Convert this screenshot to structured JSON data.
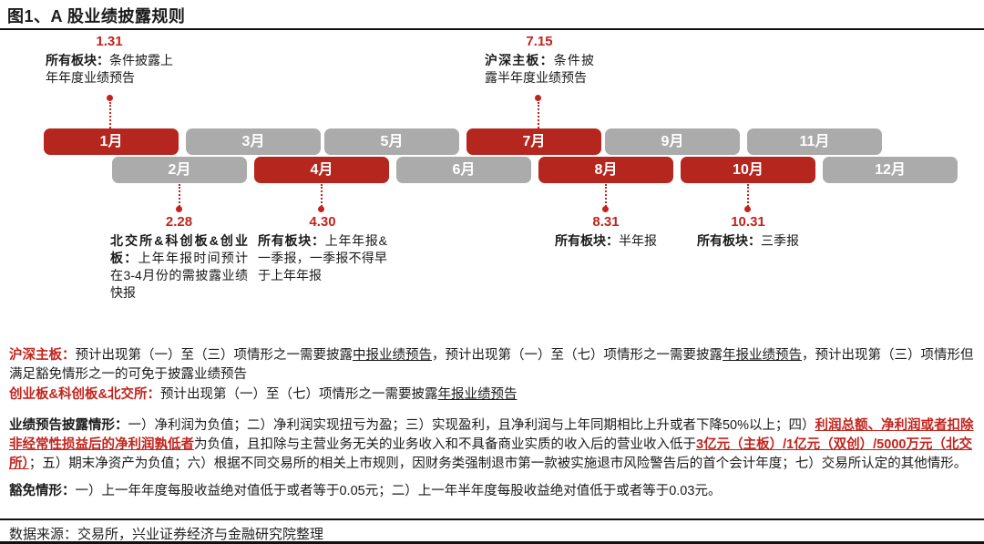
{
  "figure": {
    "title": "图1、A 股业绩披露规则"
  },
  "colors": {
    "highlight_red": "#B5261F",
    "accent_red_text": "#C2241D",
    "month_gray": "#ABABAB",
    "text": "#1A1A1A"
  },
  "timeline": {
    "months": [
      {
        "label": "1月",
        "highlighted": true
      },
      {
        "label": "2月",
        "highlighted": false
      },
      {
        "label": "3月",
        "highlighted": false
      },
      {
        "label": "4月",
        "highlighted": true
      },
      {
        "label": "5月",
        "highlighted": false
      },
      {
        "label": "6月",
        "highlighted": false
      },
      {
        "label": "7月",
        "highlighted": true
      },
      {
        "label": "8月",
        "highlighted": true
      },
      {
        "label": "9月",
        "highlighted": false
      },
      {
        "label": "10月",
        "highlighted": true
      },
      {
        "label": "11月",
        "highlighted": false
      },
      {
        "label": "12月",
        "highlighted": false
      }
    ]
  },
  "annotations": {
    "jan": {
      "date": "1.31",
      "segments": [
        {
          "t": "所有板块：",
          "s": "b"
        },
        {
          "t": "条件披露上年年度业绩预告",
          "s": ""
        }
      ]
    },
    "jul": {
      "date": "7.15",
      "segments": [
        {
          "t": "沪深主板：",
          "s": "b"
        },
        {
          "t": "条件披露半年度业绩预告",
          "s": ""
        }
      ]
    },
    "feb": {
      "date": "2.28",
      "segments": [
        {
          "t": "北交所&科创板&创业板：",
          "s": "b"
        },
        {
          "t": "上年年报时间预计在3-4月份的需披露业绩快报",
          "s": ""
        }
      ]
    },
    "apr": {
      "date": "4.30",
      "segments": [
        {
          "t": "所有板块：",
          "s": "b"
        },
        {
          "t": "上年年报&一季报，一季报不得早于上年年报",
          "s": ""
        }
      ]
    },
    "aug": {
      "date": "8.31",
      "segments": [
        {
          "t": "所有板块：",
          "s": "b"
        },
        {
          "t": "半年报",
          "s": ""
        }
      ]
    },
    "oct": {
      "date": "10.31",
      "segments": [
        {
          "t": "所有板块：",
          "s": "b"
        },
        {
          "t": "三季报",
          "s": ""
        }
      ]
    }
  },
  "notes": {
    "p1": {
      "segments": [
        {
          "t": "沪深主板：",
          "s": "rb"
        },
        {
          "t": "预计出现第（一）至（三）项情形之一需要披露",
          "s": ""
        },
        {
          "t": "中报业绩预告",
          "s": "u"
        },
        {
          "t": "，预计出现第（一）至（七）项情形之一需要披露",
          "s": ""
        },
        {
          "t": "年报业绩预告",
          "s": "u"
        },
        {
          "t": "，预计出现第（三）项情形但满足豁免情形之一的可免于披露业绩预告",
          "s": ""
        }
      ]
    },
    "p2": {
      "segments": [
        {
          "t": "创业板&科创板&北交所：",
          "s": "rb"
        },
        {
          "t": "预计出现第（一）至（七）项情形之一需要披露",
          "s": ""
        },
        {
          "t": "年报业绩预告",
          "s": "u"
        }
      ]
    },
    "p3": {
      "segments": [
        {
          "t": "业绩预告披露情形：",
          "s": "b"
        },
        {
          "t": "一）净利润为负值；二）净利润实现扭亏为盈；三）实现盈利，且净利润与上年同期相比上升或者下降50%以上；四）",
          "s": ""
        },
        {
          "t": "利润总额、净利润或者扣除非经常性损益后的净利润孰低者",
          "s": "rbu"
        },
        {
          "t": "为负值，且扣除与主营业务无关的业务收入和不具备商业实质的收入后的营业收入低于",
          "s": ""
        },
        {
          "t": "3亿元（主板）/1亿元（双创）/5000万元（北交所）",
          "s": "rbu"
        },
        {
          "t": "；五）期末净资产为负值；六）根据不同交易所的相关上市规则，因财务类强制退市第一款被实施退市风险警告后的首个会计年度；七）交易所认定的其他情形。",
          "s": ""
        }
      ]
    },
    "p4": {
      "segments": [
        {
          "t": "豁免情形：",
          "s": "b"
        },
        {
          "t": "一）上一年年度每股收益绝对值低于或者等于0.05元；二）上一年半年度每股收益绝对值低于或者等于0.03元。",
          "s": ""
        }
      ]
    }
  },
  "footer": {
    "source": "数据来源：交易所，兴业证券经济与金融研究院整理"
  }
}
